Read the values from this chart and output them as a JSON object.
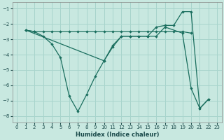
{
  "xlabel": "Humidex (Indice chaleur)",
  "bg_color": "#c8e8e0",
  "grid_color": "#a8d4cc",
  "line_color": "#1a6e5e",
  "xlim": [
    -0.5,
    23.5
  ],
  "ylim": [
    -8.4,
    -0.6
  ],
  "xticks": [
    0,
    1,
    2,
    3,
    4,
    5,
    6,
    7,
    8,
    9,
    10,
    11,
    12,
    13,
    14,
    15,
    16,
    17,
    18,
    19,
    20,
    21,
    22,
    23
  ],
  "yticks": [
    -8,
    -7,
    -6,
    -5,
    -4,
    -3,
    -2,
    -1
  ],
  "series1_x": [
    1,
    2,
    3,
    4,
    5,
    6,
    7,
    8,
    9,
    10,
    11,
    12,
    13,
    14,
    15,
    16,
    17,
    19,
    20,
    21,
    22
  ],
  "series1_y": [
    -2.4,
    -2.5,
    -2.8,
    -3.3,
    -4.2,
    -6.7,
    -7.7,
    -6.6,
    -5.4,
    -4.4,
    -3.4,
    -2.8,
    -2.8,
    -2.8,
    -2.8,
    -2.8,
    -2.2,
    -2.6,
    -6.2,
    -7.5,
    -6.9
  ],
  "series2_x": [
    1,
    2,
    3,
    4,
    5,
    6,
    7,
    8,
    9,
    10,
    11,
    12,
    13,
    14,
    15,
    16,
    17,
    18,
    19,
    20
  ],
  "series2_y": [
    -2.4,
    -2.5,
    -2.5,
    -2.5,
    -2.5,
    -2.5,
    -2.5,
    -2.5,
    -2.5,
    -2.5,
    -2.5,
    -2.5,
    -2.5,
    -2.5,
    -2.5,
    -2.5,
    -2.5,
    -2.5,
    -2.5,
    -2.6
  ],
  "series3_x": [
    1,
    10,
    11,
    12,
    13,
    14,
    15,
    16,
    17,
    18,
    19,
    20,
    21,
    22
  ],
  "series3_y": [
    -2.4,
    -4.4,
    -3.5,
    -2.8,
    -2.8,
    -2.8,
    -2.8,
    -2.2,
    -2.1,
    -2.1,
    -1.2,
    -1.2,
    -7.5,
    -6.9
  ]
}
